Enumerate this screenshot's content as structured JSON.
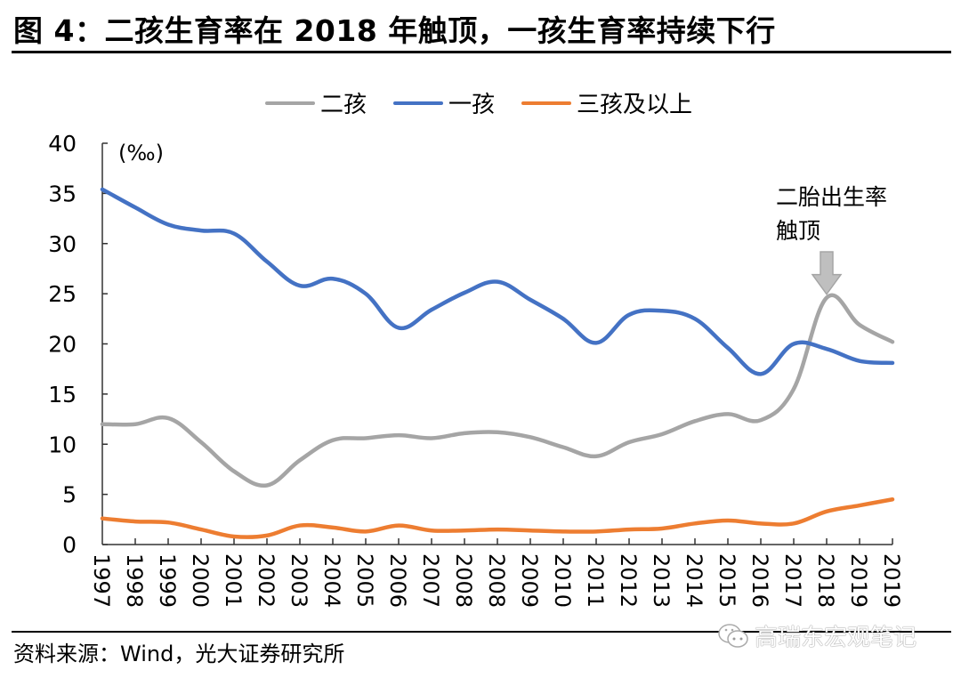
{
  "title": "图 4：二孩生育率在 2018 年触顶，一孩生育率持续下行",
  "source": "资料来源：Wind，光大证券研究所",
  "watermark": {
    "icon": "wechat-icon",
    "text": "高瑞东宏观笔记"
  },
  "colors": {
    "second_child": "#A5A5A5",
    "first_child": "#4472C4",
    "third_plus": "#ED7D31",
    "axis": "#000000"
  },
  "chart_data": {
    "type": "line",
    "title": "二孩生育率在 2018 年触顶，一孩生育率持续下行",
    "xlabel": "",
    "ylabel": "(‰)",
    "ylim": [
      0,
      40
    ],
    "yticks": [
      0,
      5,
      10,
      15,
      20,
      25,
      30,
      35,
      40
    ],
    "ytick_labels": [
      "0",
      "5",
      "10",
      "15",
      "20",
      "25",
      "30",
      "35",
      "40"
    ],
    "grid": false,
    "legend_position": "top-center",
    "smooth": true,
    "categories": [
      "1997",
      "1998",
      "1999",
      "2000",
      "2001",
      "2002",
      "2003",
      "2004",
      "2005",
      "2006",
      "2007",
      "2008",
      "2008",
      "2009",
      "2010",
      "2011",
      "2012",
      "2013",
      "2014",
      "2015",
      "2016",
      "2017",
      "2018",
      "2019",
      "2019"
    ],
    "series": [
      {
        "name": "二孩",
        "color": "#A5A5A5",
        "values": [
          12.0,
          12.0,
          12.6,
          10.2,
          7.3,
          5.9,
          8.4,
          10.4,
          10.6,
          10.9,
          10.6,
          11.1,
          11.2,
          10.7,
          9.7,
          8.8,
          10.2,
          11.0,
          12.3,
          13.0,
          12.4,
          15.5,
          24.6,
          21.9,
          20.2
        ]
      },
      {
        "name": "一孩",
        "color": "#4472C4",
        "values": [
          35.4,
          33.6,
          31.9,
          31.3,
          31.0,
          28.2,
          25.8,
          26.5,
          25.0,
          21.6,
          23.4,
          25.1,
          26.2,
          24.4,
          22.5,
          20.1,
          22.9,
          23.3,
          22.5,
          19.6,
          17.0,
          20.0,
          19.5,
          18.3,
          18.1
        ]
      },
      {
        "name": "三孩及以上",
        "color": "#ED7D31",
        "values": [
          2.6,
          2.3,
          2.2,
          1.5,
          0.8,
          0.9,
          1.9,
          1.7,
          1.3,
          1.9,
          1.4,
          1.4,
          1.5,
          1.4,
          1.3,
          1.3,
          1.5,
          1.6,
          2.1,
          2.4,
          2.1,
          2.1,
          3.3,
          3.9,
          4.5
        ]
      }
    ],
    "annotations": [
      {
        "text_line1": "二胎出生率",
        "text_line2": "触顶",
        "target_category_index": 22,
        "target_series": "二孩",
        "marker": "down-arrow"
      }
    ]
  }
}
